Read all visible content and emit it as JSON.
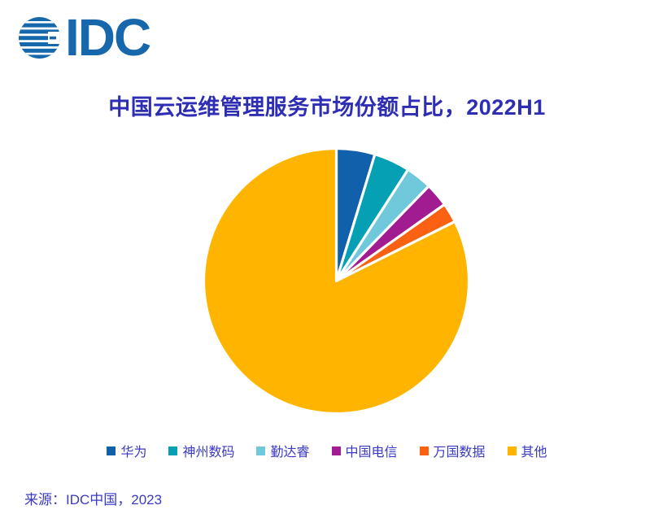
{
  "logo": {
    "text": "IDC",
    "color": "#1767AC"
  },
  "title": {
    "text": "中国云运维管理服务市场份额占比，2022H1",
    "color": "#2E2EB4"
  },
  "source": {
    "text": "来源：IDC中国，2023"
  },
  "chart_data": {
    "type": "pie",
    "title": "中国云运维管理服务市场份额占比，2022H1",
    "units": "percent",
    "start_angle_deg": 0,
    "direction": "clockwise",
    "legend_position": "bottom",
    "text_color": "#3A3AC2",
    "slice_gap_color": "#FFFFFF",
    "slices": [
      {
        "label": "华为",
        "value": 4.7,
        "color": "#1060AC"
      },
      {
        "label": "神州数码",
        "value": 4.4,
        "color": "#06A0B5"
      },
      {
        "label": "勤达睿",
        "value": 3.2,
        "color": "#6FC9DB"
      },
      {
        "label": "中国电信",
        "value": 2.9,
        "color": "#A11C90"
      },
      {
        "label": "万国数据",
        "value": 2.4,
        "color": "#FA6112"
      },
      {
        "label": "其他",
        "value": 82.4,
        "color": "#FFB400"
      }
    ]
  }
}
